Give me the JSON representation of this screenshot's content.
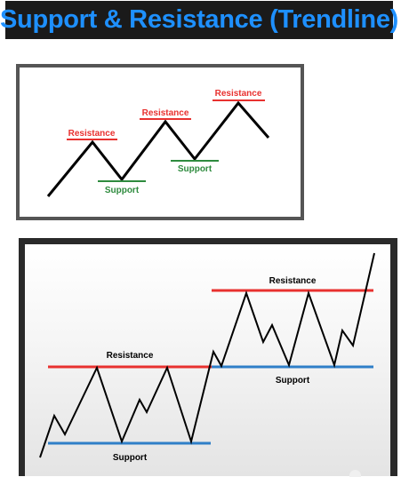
{
  "title": "Support & Resistance (Trendline)",
  "colors": {
    "title_background": "#1a1a1a",
    "title_text": "#1e90ff",
    "resistance": "#e8312f",
    "support_top": "#2e8b3e",
    "support_bottom": "#2f7fc8",
    "price_line": "#000000"
  },
  "top_diagram": {
    "labels": {
      "resistance": "Resistance",
      "support": "Support"
    }
  },
  "bottom_diagram": {
    "labels": {
      "resistance_upper": "Resistance",
      "support_upper": "Support",
      "resistance_lower": "Resistance",
      "support_lower": "Support"
    }
  }
}
